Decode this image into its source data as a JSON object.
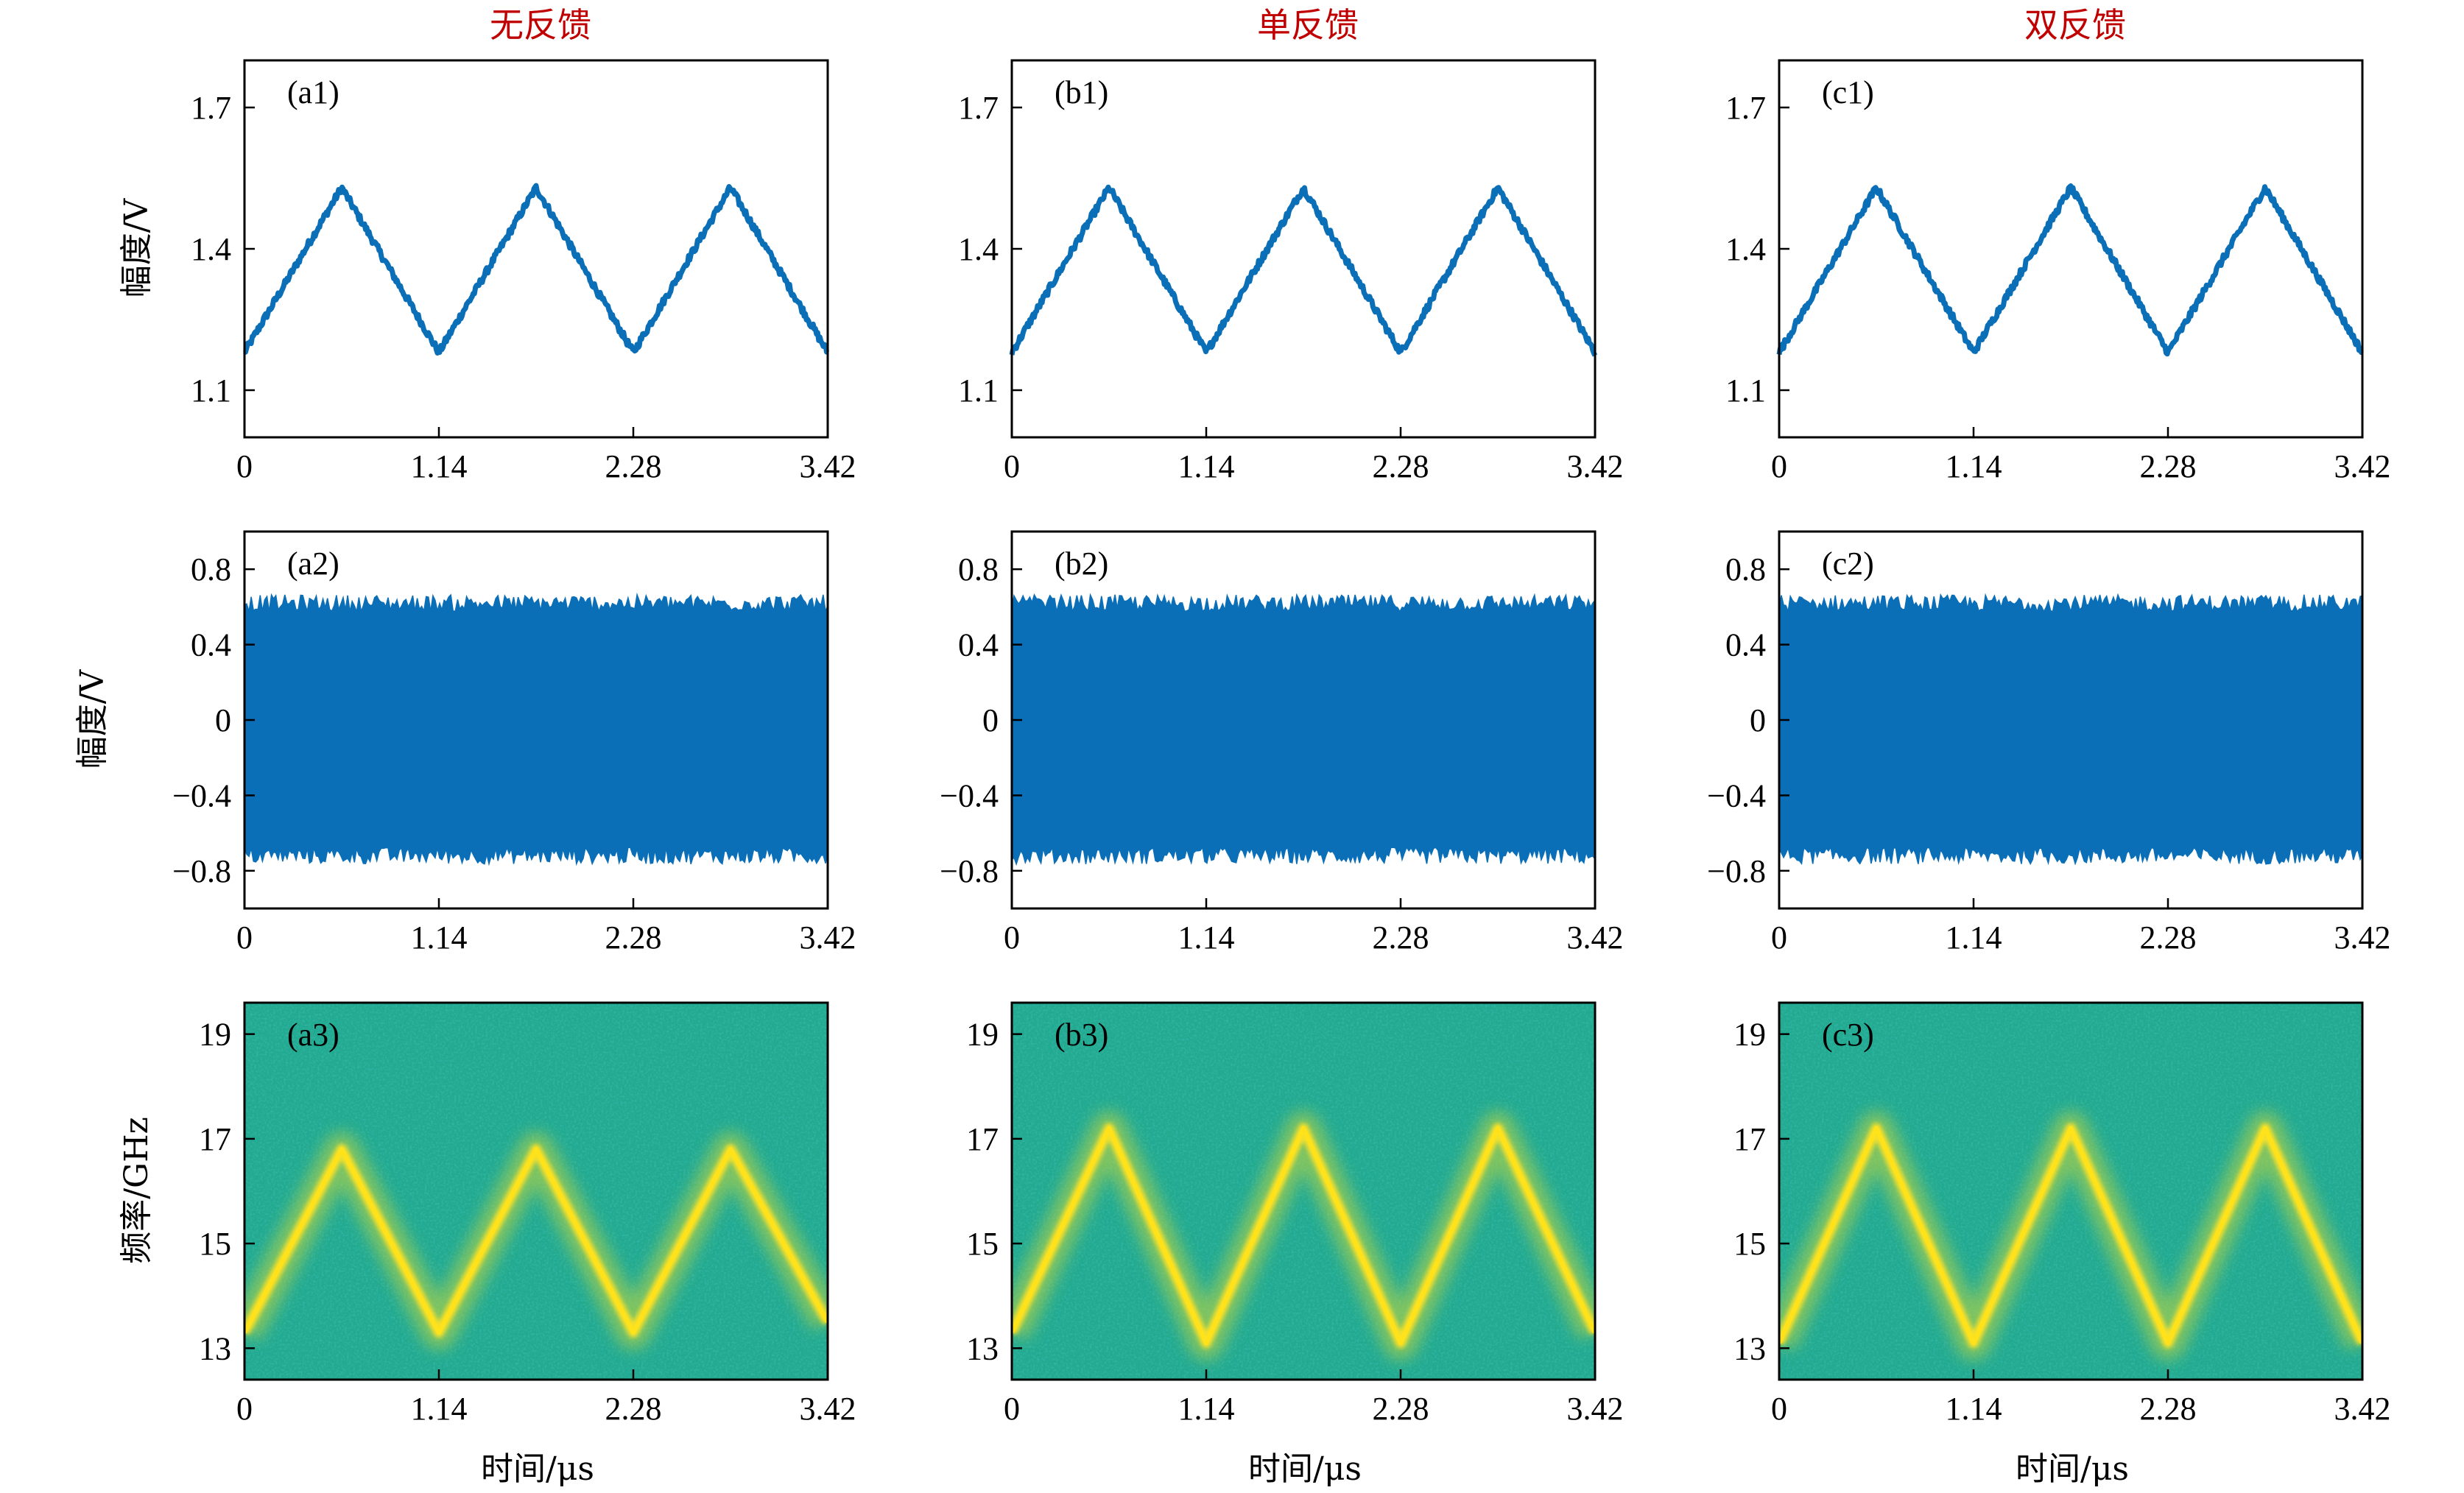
{
  "column_titles": [
    "无反馈",
    "单反馈",
    "双反馈"
  ],
  "row_ylabels": [
    "幅度/V",
    "幅度/V",
    "频率/GHz"
  ],
  "xlabel": "时间/μs",
  "colors": {
    "line": "#0b6fb8",
    "title": "#c00000",
    "spectro_bg": "#22a98f",
    "spectro_ridge": "#ffe21a"
  },
  "chart_data": [
    {
      "type": "line",
      "panel": "(a1)",
      "row": 0,
      "col": 0,
      "x_ticks": [
        "0",
        "1.14",
        "2.28",
        "3.42"
      ],
      "xlim": [
        0,
        3.42
      ],
      "y_ticks": [
        "1.1",
        "1.4",
        "1.7"
      ],
      "y_tick_values": [
        1.1,
        1.4,
        1.7
      ],
      "ylim": [
        1.0,
        1.8
      ],
      "series": [
        {
          "x": [
            0,
            0.57,
            1.14,
            1.71,
            2.28,
            2.85,
            3.42
          ],
          "y": [
            1.18,
            1.53,
            1.18,
            1.53,
            1.18,
            1.53,
            1.18
          ]
        }
      ]
    },
    {
      "type": "line",
      "panel": "(b1)",
      "row": 0,
      "col": 1,
      "x_ticks": [
        "0",
        "1.14",
        "2.28",
        "3.42"
      ],
      "xlim": [
        0,
        3.42
      ],
      "y_ticks": [
        "1.1",
        "1.4",
        "1.7"
      ],
      "y_tick_values": [
        1.1,
        1.4,
        1.7
      ],
      "ylim": [
        1.0,
        1.8
      ],
      "series": [
        {
          "x": [
            0,
            0.57,
            1.14,
            1.71,
            2.28,
            2.85,
            3.42
          ],
          "y": [
            1.18,
            1.53,
            1.18,
            1.53,
            1.18,
            1.53,
            1.18
          ]
        }
      ]
    },
    {
      "type": "line",
      "panel": "(c1)",
      "row": 0,
      "col": 2,
      "x_ticks": [
        "0",
        "1.14",
        "2.28",
        "3.42"
      ],
      "xlim": [
        0,
        3.42
      ],
      "y_ticks": [
        "1.1",
        "1.4",
        "1.7"
      ],
      "y_tick_values": [
        1.1,
        1.4,
        1.7
      ],
      "ylim": [
        1.0,
        1.8
      ],
      "series": [
        {
          "x": [
            0,
            0.57,
            1.14,
            1.71,
            2.28,
            2.85,
            3.42
          ],
          "y": [
            1.18,
            1.53,
            1.18,
            1.53,
            1.18,
            1.53,
            1.18
          ]
        }
      ]
    },
    {
      "type": "area",
      "panel": "(a2)",
      "row": 1,
      "col": 0,
      "x_ticks": [
        "0",
        "1.14",
        "2.28",
        "3.42"
      ],
      "xlim": [
        0,
        3.42
      ],
      "y_ticks": [
        "0.8",
        "0.4",
        "0",
        "−0.4",
        "−0.8"
      ],
      "y_tick_values": [
        0.8,
        0.4,
        0,
        -0.4,
        -0.8
      ],
      "ylim": [
        -1.0,
        1.0
      ],
      "envelope": {
        "upper": 0.62,
        "lower": -0.72
      }
    },
    {
      "type": "area",
      "panel": "(b2)",
      "row": 1,
      "col": 1,
      "x_ticks": [
        "0",
        "1.14",
        "2.28",
        "3.42"
      ],
      "xlim": [
        0,
        3.42
      ],
      "y_ticks": [
        "0.8",
        "0.4",
        "0",
        "−0.4",
        "−0.8"
      ],
      "y_tick_values": [
        0.8,
        0.4,
        0,
        -0.4,
        -0.8
      ],
      "ylim": [
        -1.0,
        1.0
      ],
      "envelope": {
        "upper": 0.62,
        "lower": -0.72
      }
    },
    {
      "type": "area",
      "panel": "(c2)",
      "row": 1,
      "col": 2,
      "x_ticks": [
        "0",
        "1.14",
        "2.28",
        "3.42"
      ],
      "xlim": [
        0,
        3.42
      ],
      "y_ticks": [
        "0.8",
        "0.4",
        "0",
        "−0.4",
        "−0.8"
      ],
      "y_tick_values": [
        0.8,
        0.4,
        0,
        -0.4,
        -0.8
      ],
      "ylim": [
        -1.0,
        1.0
      ],
      "envelope": {
        "upper": 0.62,
        "lower": -0.72
      }
    },
    {
      "type": "heatmap",
      "panel": "(a3)",
      "row": 2,
      "col": 0,
      "x_ticks": [
        "0",
        "1.14",
        "2.28",
        "3.42"
      ],
      "xlim": [
        0,
        3.42
      ],
      "y_ticks": [
        "19",
        "17",
        "15",
        "13"
      ],
      "y_tick_values": [
        19,
        17,
        15,
        13
      ],
      "ylim": [
        12.4,
        19.6
      ],
      "ridge": {
        "x": [
          0,
          0.57,
          1.14,
          1.71,
          2.28,
          2.85,
          3.42
        ],
        "y": [
          13.3,
          16.8,
          13.3,
          16.8,
          13.3,
          16.8,
          13.5
        ]
      }
    },
    {
      "type": "heatmap",
      "panel": "(b3)",
      "row": 2,
      "col": 1,
      "x_ticks": [
        "0",
        "1.14",
        "2.28",
        "3.42"
      ],
      "xlim": [
        0,
        3.42
      ],
      "y_ticks": [
        "19",
        "17",
        "15",
        "13"
      ],
      "y_tick_values": [
        19,
        17,
        15,
        13
      ],
      "ylim": [
        12.4,
        19.6
      ],
      "ridge": {
        "x": [
          0,
          0.57,
          1.14,
          1.71,
          2.28,
          2.85,
          3.42
        ],
        "y": [
          13.3,
          17.2,
          13.1,
          17.2,
          13.1,
          17.2,
          13.3
        ]
      }
    },
    {
      "type": "heatmap",
      "panel": "(c3)",
      "row": 2,
      "col": 2,
      "x_ticks": [
        "0",
        "1.14",
        "2.28",
        "3.42"
      ],
      "xlim": [
        0,
        3.42
      ],
      "y_ticks": [
        "19",
        "17",
        "15",
        "13"
      ],
      "y_tick_values": [
        19,
        17,
        15,
        13
      ],
      "ylim": [
        12.4,
        19.6
      ],
      "ridge": {
        "x": [
          0,
          0.57,
          1.14,
          1.71,
          2.28,
          2.85,
          3.42
        ],
        "y": [
          13.1,
          17.2,
          13.1,
          17.2,
          13.1,
          17.2,
          13.1
        ]
      }
    }
  ]
}
